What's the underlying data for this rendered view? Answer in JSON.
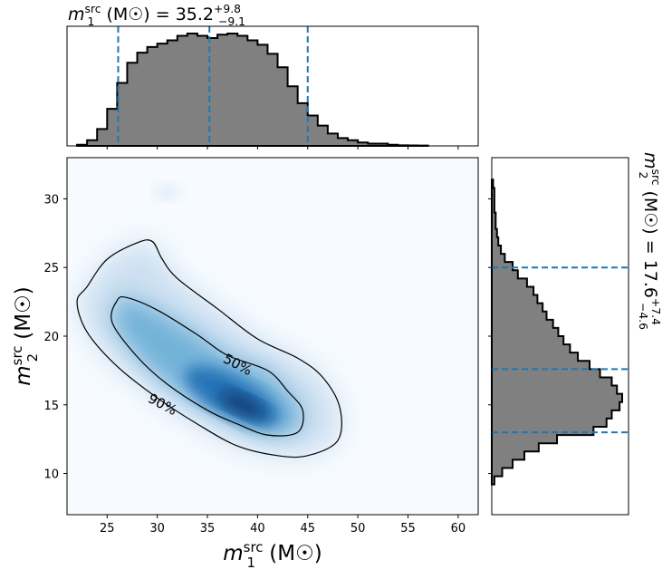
{
  "chart_data": [
    {
      "type": "histogram",
      "panel": "top marginal",
      "variable": "m1_src",
      "title": "m1src (M☉) = 35.2 +9.8 −9.1",
      "title_parts": {
        "var": "m",
        "sub": "1",
        "sup": "src",
        "unit": "(M☉)",
        "median": "35.2",
        "plus": "+9.8",
        "minus": "−9.1"
      },
      "xlim": [
        21,
        62
      ],
      "bin_edges": [
        22,
        23,
        24,
        25,
        26,
        27,
        28,
        29,
        30,
        31,
        32,
        33,
        34,
        35,
        36,
        37,
        38,
        39,
        40,
        41,
        42,
        43,
        44,
        45,
        46,
        47,
        48,
        49,
        50,
        51,
        52,
        53,
        54,
        55,
        56,
        57
      ],
      "density": [
        0.01,
        0.05,
        0.15,
        0.33,
        0.56,
        0.74,
        0.83,
        0.88,
        0.91,
        0.94,
        0.98,
        1.0,
        0.98,
        0.96,
        0.99,
        1.0,
        0.98,
        0.94,
        0.9,
        0.82,
        0.7,
        0.53,
        0.38,
        0.27,
        0.18,
        0.11,
        0.07,
        0.05,
        0.03,
        0.02,
        0.02,
        0.01,
        0.005,
        0.004,
        0.003
      ],
      "quantile_lines": [
        26.1,
        35.2,
        45.0
      ],
      "fill": "#808080",
      "edge": "#000000",
      "line_color": "#1f77b4"
    },
    {
      "type": "heatmap",
      "panel": "joint",
      "xlabel_parts": {
        "var": "m",
        "sub": "1",
        "sup": "src",
        "unit": "(M☉)"
      },
      "ylabel_parts": {
        "var": "m",
        "sub": "2",
        "sup": "src",
        "unit": "(M☉)"
      },
      "xlim": [
        21,
        62
      ],
      "ylim": [
        7,
        33
      ],
      "xticks": [
        25,
        30,
        35,
        40,
        45,
        50,
        55,
        60
      ],
      "yticks": [
        10,
        15,
        20,
        25,
        30
      ],
      "density_peak": {
        "m1": 38.5,
        "m2": 15.0
      },
      "contours": [
        {
          "label": "50%",
          "label_at": [
            38,
            17.9
          ],
          "path": [
            [
              26,
              22.6
            ],
            [
              27,
              22.8
            ],
            [
              30,
              21.9
            ],
            [
              34,
              20.1
            ],
            [
              37,
              18.6
            ],
            [
              41,
              17.5
            ],
            [
              43,
              16.0
            ],
            [
              44.5,
              14.6
            ],
            [
              44,
              13.0
            ],
            [
              41,
              12.8
            ],
            [
              38,
              13.6
            ],
            [
              35,
              14.6
            ],
            [
              31,
              16.5
            ],
            [
              28,
              18.5
            ],
            [
              25.5,
              21.0
            ]
          ]
        },
        {
          "label": "90%",
          "label_at": [
            30.5,
            15.0
          ],
          "path": [
            [
              23,
              23.6
            ],
            [
              25,
              25.6
            ],
            [
              28,
              26.8
            ],
            [
              29.5,
              26.9
            ],
            [
              30.5,
              25.6
            ],
            [
              32,
              24.2
            ],
            [
              36,
              22.0
            ],
            [
              40,
              19.8
            ],
            [
              44,
              18.4
            ],
            [
              46.5,
              17.0
            ],
            [
              48.2,
              14.8
            ],
            [
              48.0,
              12.4
            ],
            [
              45,
              11.3
            ],
            [
              42,
              11.3
            ],
            [
              38,
              12.0
            ],
            [
              34,
              13.6
            ],
            [
              30,
              15.5
            ],
            [
              26,
              17.8
            ],
            [
              23,
              20.3
            ],
            [
              22,
              22.5
            ]
          ]
        }
      ]
    },
    {
      "type": "histogram",
      "panel": "right marginal",
      "orientation": "horizontal",
      "variable": "m2_src",
      "title": "m2src (M☉) = 17.6 +7.4 −4.6",
      "title_parts": {
        "var": "m",
        "sub": "2",
        "sup": "src",
        "unit": "(M☉)",
        "median": "17.6",
        "plus": "+7.4",
        "minus": "−4.6"
      },
      "ylim": [
        7,
        33
      ],
      "bin_edges": [
        9.2,
        9.8,
        10.4,
        11.0,
        11.6,
        12.2,
        12.8,
        13.4,
        14.0,
        14.6,
        15.2,
        15.8,
        16.4,
        17.0,
        17.6,
        18.2,
        18.8,
        19.4,
        20.0,
        20.6,
        21.2,
        21.8,
        22.4,
        23.0,
        23.6,
        24.2,
        24.8,
        25.4,
        26.0,
        26.6,
        27.2,
        27.8,
        28.4,
        29.0,
        29.6,
        30.2,
        30.8,
        31.4
      ],
      "density": [
        0.02,
        0.08,
        0.16,
        0.25,
        0.36,
        0.5,
        0.78,
        0.88,
        0.92,
        0.98,
        1.0,
        0.96,
        0.92,
        0.83,
        0.75,
        0.66,
        0.6,
        0.55,
        0.51,
        0.47,
        0.42,
        0.39,
        0.35,
        0.32,
        0.27,
        0.2,
        0.16,
        0.1,
        0.07,
        0.05,
        0.04,
        0.03,
        0.03,
        0.02,
        0.02,
        0.02,
        0.01
      ],
      "quantile_lines": [
        13.0,
        17.6,
        25.0
      ],
      "fill": "#808080",
      "edge": "#000000",
      "line_color": "#1f77b4"
    }
  ],
  "colormap": [
    "#f7fbff",
    "#c6dbef",
    "#6baed6",
    "#2171b5",
    "#08306b"
  ]
}
